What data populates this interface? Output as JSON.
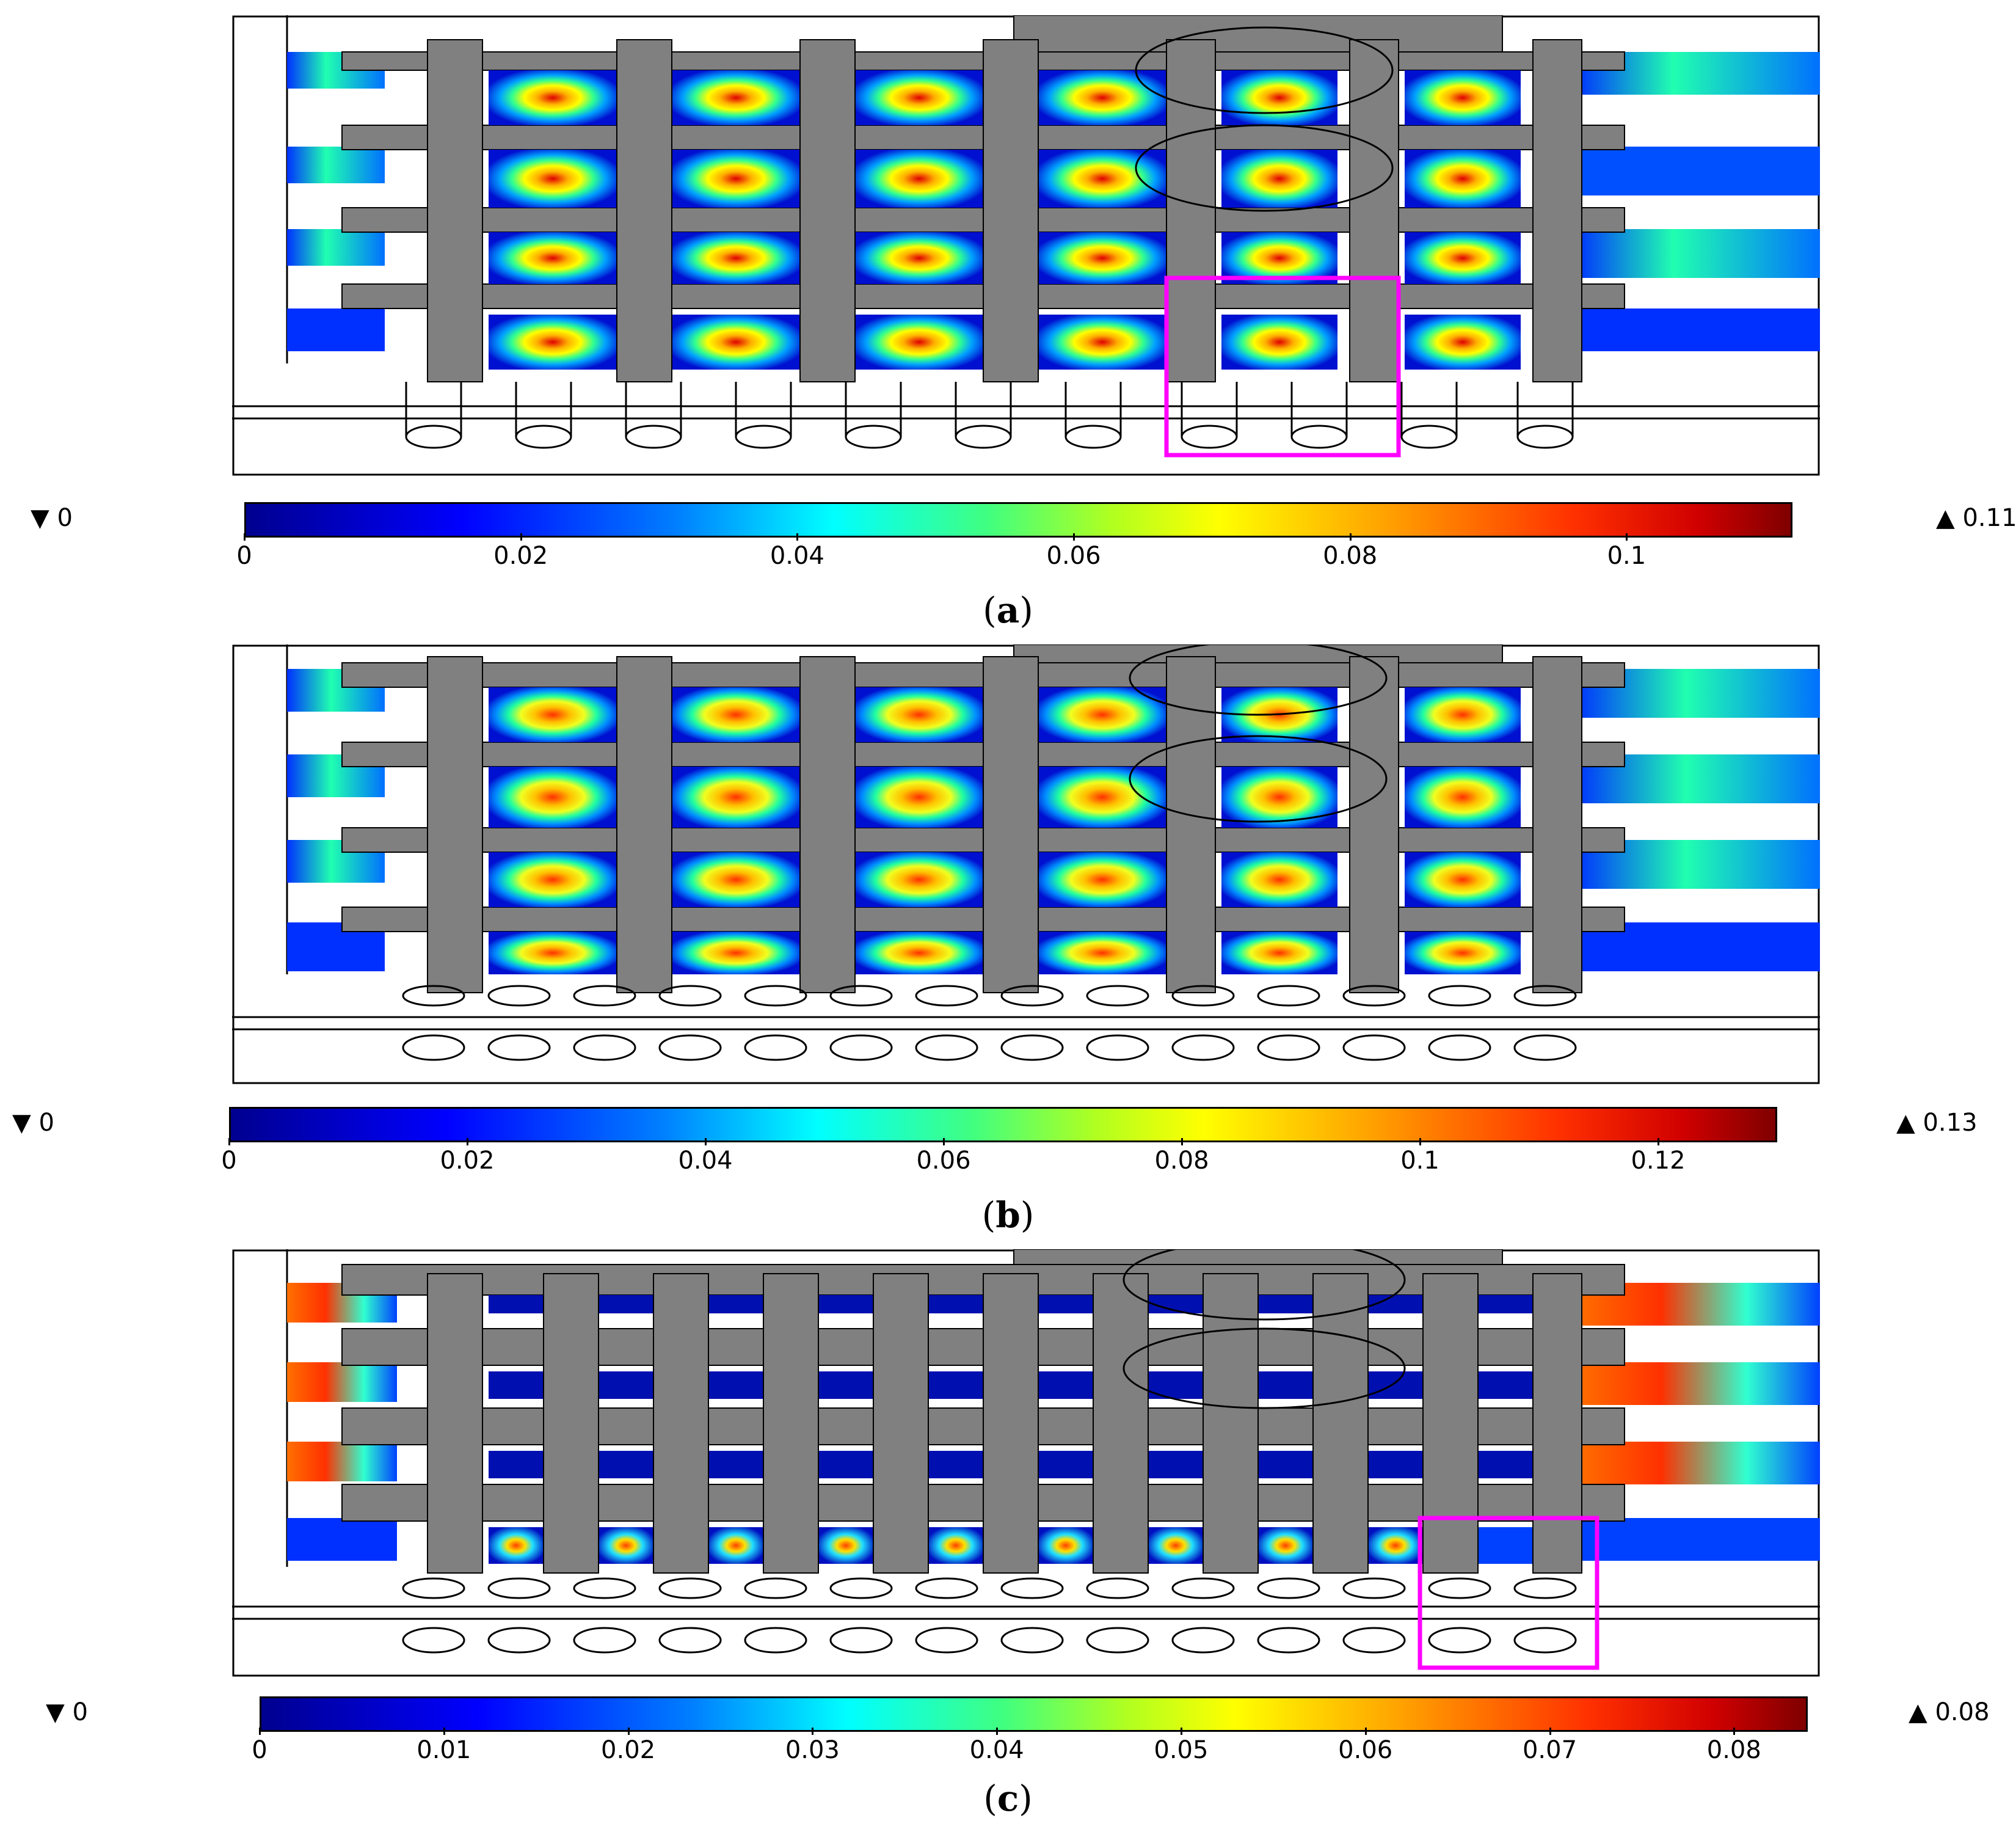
{
  "panels": [
    {
      "id": "a",
      "caption_open": "(",
      "caption_letter": "a",
      "caption_close": ")",
      "min_label": "▼ 0",
      "max_label": "▲ 0.11",
      "ticks": [
        "0",
        "0.02",
        "0.04",
        "0.06",
        "0.08",
        "0.1"
      ],
      "tick_values": [
        0,
        0.02,
        0.04,
        0.06,
        0.08,
        0.1
      ],
      "range": [
        0,
        0.112
      ],
      "highlight": "magenta-box"
    },
    {
      "id": "b",
      "caption_open": "(",
      "caption_letter": "b",
      "caption_close": ")",
      "min_label": "▼ 0",
      "max_label": "▲ 0.13",
      "ticks": [
        "0",
        "0.02",
        "0.04",
        "0.06",
        "0.08",
        "0.1",
        "0.12"
      ],
      "tick_values": [
        0,
        0.02,
        0.04,
        0.06,
        0.08,
        0.1,
        0.12
      ],
      "range": [
        0,
        0.13
      ],
      "highlight": "none"
    },
    {
      "id": "c",
      "caption_open": "(",
      "caption_letter": "c",
      "caption_close": ")",
      "min_label": "▼ 0",
      "max_label": "▲ 0.08",
      "ticks": [
        "0",
        "0.01",
        "0.02",
        "0.03",
        "0.04",
        "0.05",
        "0.06",
        "0.07",
        "0.08"
      ],
      "tick_values": [
        0,
        0.01,
        0.02,
        0.03,
        0.04,
        0.05,
        0.06,
        0.07,
        0.08
      ],
      "range": [
        0,
        0.084
      ],
      "highlight": "magenta-box"
    }
  ],
  "colors": {
    "structure": "#808080",
    "outline": "#000000",
    "highlight": "#ff00ff",
    "flow_low": "#0000c8",
    "flow_mid": "#00c8ff",
    "flow_peak": "#ffa000"
  }
}
